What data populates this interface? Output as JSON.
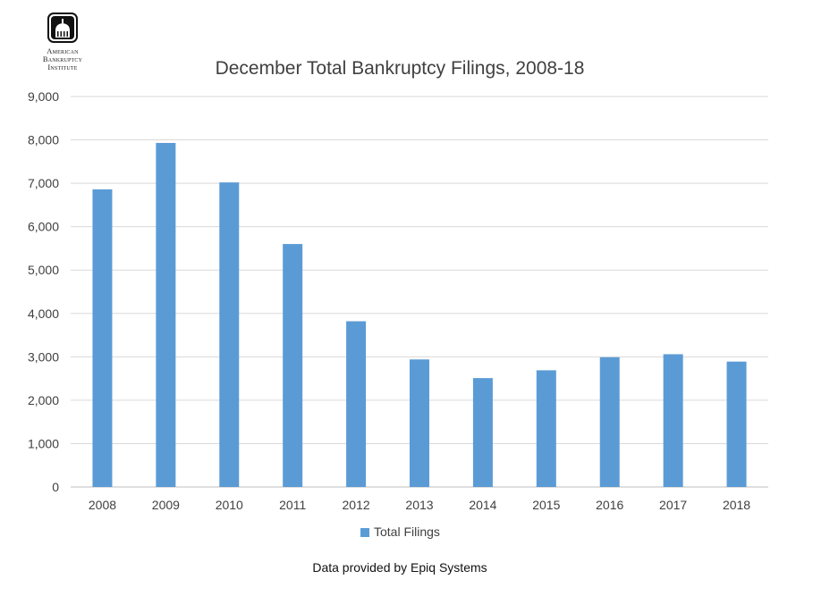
{
  "logo": {
    "lines": [
      "American",
      "Bankruptcy",
      "Institute"
    ]
  },
  "chart_data": {
    "type": "bar",
    "title": "December Total Bankruptcy Filings, 2008-18",
    "xlabel": "",
    "ylabel": "",
    "categories": [
      "2008",
      "2009",
      "2010",
      "2011",
      "2012",
      "2013",
      "2014",
      "2015",
      "2016",
      "2017",
      "2018"
    ],
    "series": [
      {
        "name": "Total Filings",
        "values": [
          6860,
          7930,
          7020,
          5600,
          3820,
          2940,
          2510,
          2690,
          2990,
          3060,
          2890
        ]
      }
    ],
    "ylim": [
      0,
      9000
    ],
    "yticks": [
      "0",
      "1,000",
      "2,000",
      "3,000",
      "4,000",
      "5,000",
      "6,000",
      "7,000",
      "8,000",
      "9,000"
    ],
    "grid": true,
    "legend_position": "bottom",
    "bar_color": "#5b9bd5",
    "grid_color": "#d9d9d9"
  },
  "source_note": "Data provided by Epiq Systems"
}
